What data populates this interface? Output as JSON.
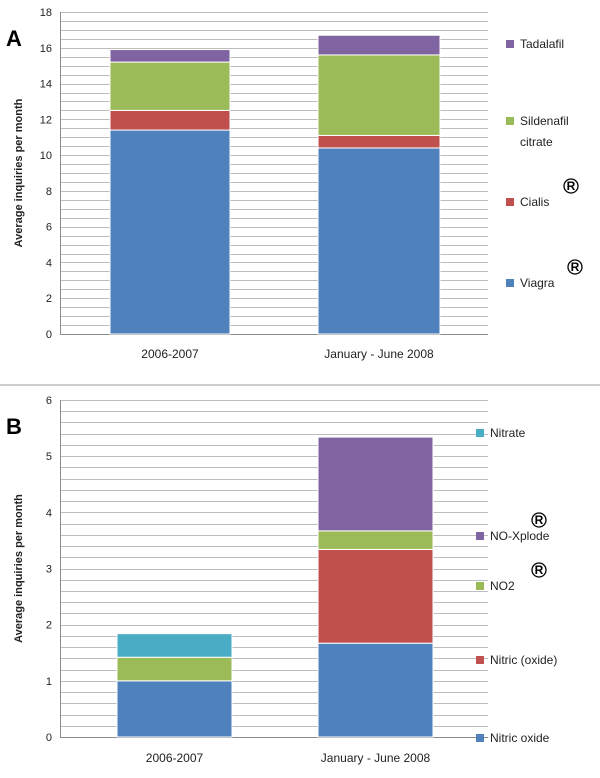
{
  "chart_data": [
    {
      "panel": "A",
      "type": "bar",
      "stacked": true,
      "ylabel": "Average inquiries per month",
      "xlabel": "",
      "ylim": [
        0,
        18
      ],
      "major_ticks": [
        0,
        2,
        4,
        6,
        8,
        10,
        12,
        14,
        16,
        18
      ],
      "minor_step": 0.5,
      "categories": [
        "2006-2007",
        "January - June 2008"
      ],
      "series": [
        {
          "name": "Viagra",
          "registered": true,
          "color": "#4f81bd",
          "values": [
            11.4,
            10.4
          ]
        },
        {
          "name": "Cialis",
          "registered": true,
          "color": "#c0504d",
          "values": [
            1.1,
            0.7
          ]
        },
        {
          "name": "Sildenafil citrate",
          "name_lines": [
            "Sildenafil",
            "citrate"
          ],
          "registered": false,
          "color": "#9bbb59",
          "values": [
            2.7,
            4.5
          ]
        },
        {
          "name": "Tadalafil",
          "registered": false,
          "color": "#8064a2",
          "values": [
            0.7,
            1.1
          ]
        }
      ],
      "legend_position": "right"
    },
    {
      "panel": "B",
      "type": "bar",
      "stacked": true,
      "ylabel": "Average inquiries per month",
      "xlabel": "",
      "ylim": [
        0,
        6
      ],
      "major_ticks": [
        0,
        1,
        2,
        3,
        4,
        5,
        6
      ],
      "minor_step": 0.2,
      "categories": [
        "2006-2007",
        "January - June 2008"
      ],
      "series": [
        {
          "name": "Nitric oxide",
          "registered": false,
          "color": "#4f81bd",
          "values": [
            1.0,
            1.67
          ]
        },
        {
          "name": "Nitric (oxide)",
          "registered": false,
          "color": "#c0504d",
          "values": [
            0,
            1.67
          ]
        },
        {
          "name": "NO2",
          "registered": true,
          "color": "#9bbb59",
          "values": [
            0.42,
            0.33
          ]
        },
        {
          "name": "NO-Xplode",
          "registered": true,
          "color": "#8064a2",
          "values": [
            0,
            1.67
          ]
        },
        {
          "name": "Nitrate",
          "registered": false,
          "color": "#4bacc6",
          "values": [
            0.42,
            0
          ]
        }
      ],
      "legend_position": "right"
    }
  ],
  "registered_symbol": "®"
}
